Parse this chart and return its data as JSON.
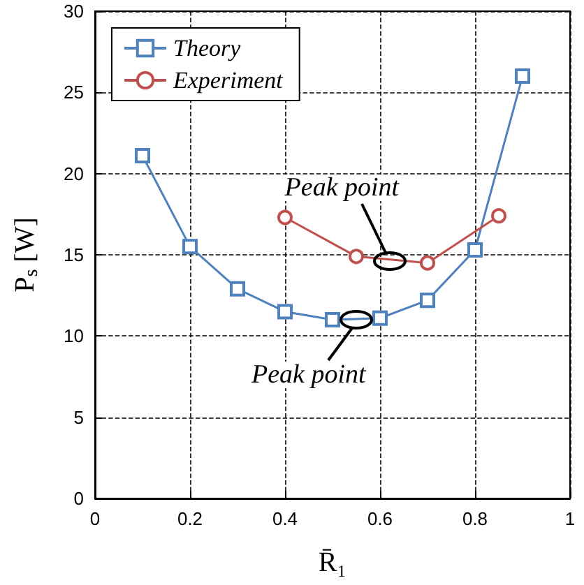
{
  "chart_data": {
    "type": "line",
    "xlabel": "R̄₁",
    "ylabel": "P$_{s}$ [W]",
    "xlim": [
      0,
      1
    ],
    "xticks": [
      0,
      0.2,
      0.4,
      0.6,
      0.8,
      1
    ],
    "ylim": [
      0,
      30
    ],
    "yticks": [
      0,
      5,
      10,
      15,
      20,
      25,
      30
    ],
    "grid": true,
    "legend": "top left",
    "line_style": "solid",
    "series": [
      {
        "name": "Theory",
        "color": "#4f81bd",
        "marker": "square",
        "x": [
          0.1,
          0.2,
          0.3,
          0.4,
          0.5,
          0.6,
          0.7,
          0.8,
          0.9
        ],
        "values": [
          21.1,
          15.5,
          12.9,
          11.5,
          11.0,
          11.1,
          12.2,
          15.3,
          26.0
        ]
      },
      {
        "name": "Experiment",
        "color": "#c0504d",
        "marker": "circle",
        "x": [
          0.4,
          0.55,
          0.7,
          0.85
        ],
        "values": [
          17.3,
          14.9,
          14.5,
          17.4
        ]
      }
    ],
    "annotations": [
      {
        "text": "Peak point",
        "x": 0.62,
        "y": 14.6
      },
      {
        "text": "Peak point",
        "x": 0.55,
        "y": 11.0
      }
    ]
  }
}
